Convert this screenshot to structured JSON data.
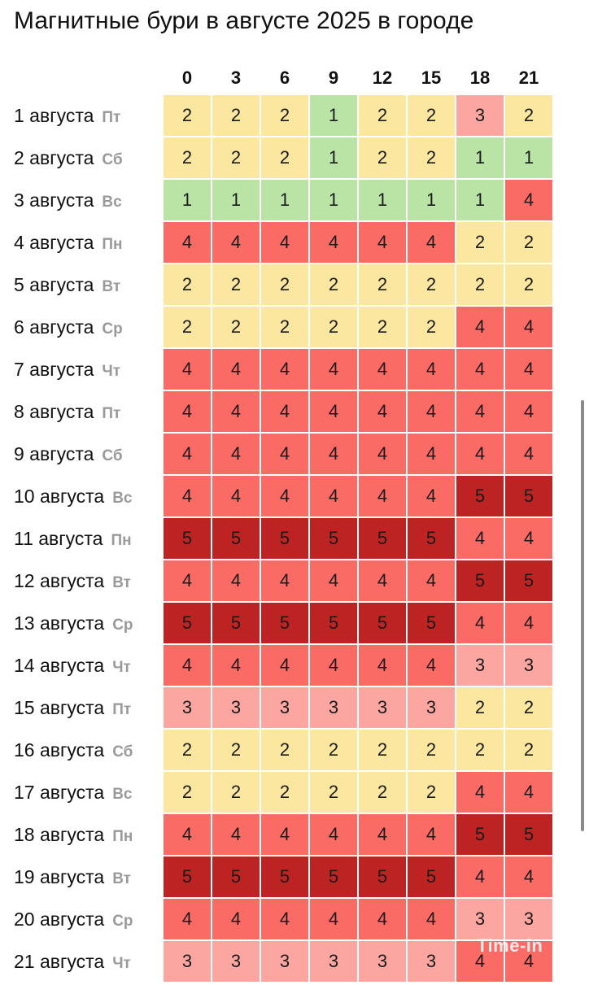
{
  "title": "Магнитные бури в августе 2025 в городе",
  "watermark": "Time-in",
  "colors": {
    "1": "#b9e4a6",
    "2": "#fbe7a0",
    "3": "#fba6a1",
    "4": "#fb6b66",
    "5": "#be2323"
  },
  "chart_data": {
    "type": "heatmap",
    "title": "Магнитные бури в августе 2025 в городе",
    "columns": [
      "0",
      "3",
      "6",
      "9",
      "12",
      "15",
      "18",
      "21"
    ],
    "rows": [
      {
        "date": "1 августа",
        "dow": "Пт",
        "values": [
          2,
          2,
          2,
          1,
          2,
          2,
          3,
          2
        ]
      },
      {
        "date": "2 августа",
        "dow": "Сб",
        "values": [
          2,
          2,
          2,
          1,
          2,
          2,
          1,
          1
        ]
      },
      {
        "date": "3 августа",
        "dow": "Вс",
        "values": [
          1,
          1,
          1,
          1,
          1,
          1,
          1,
          4
        ]
      },
      {
        "date": "4 августа",
        "dow": "Пн",
        "values": [
          4,
          4,
          4,
          4,
          4,
          4,
          2,
          2
        ]
      },
      {
        "date": "5 августа",
        "dow": "Вт",
        "values": [
          2,
          2,
          2,
          2,
          2,
          2,
          2,
          2
        ]
      },
      {
        "date": "6 августа",
        "dow": "Ср",
        "values": [
          2,
          2,
          2,
          2,
          2,
          2,
          4,
          4
        ]
      },
      {
        "date": "7 августа",
        "dow": "Чт",
        "values": [
          4,
          4,
          4,
          4,
          4,
          4,
          4,
          4
        ]
      },
      {
        "date": "8 августа",
        "dow": "Пт",
        "values": [
          4,
          4,
          4,
          4,
          4,
          4,
          4,
          4
        ]
      },
      {
        "date": "9 августа",
        "dow": "Сб",
        "values": [
          4,
          4,
          4,
          4,
          4,
          4,
          4,
          4
        ]
      },
      {
        "date": "10 августа",
        "dow": "Вс",
        "values": [
          4,
          4,
          4,
          4,
          4,
          4,
          5,
          5
        ]
      },
      {
        "date": "11 августа",
        "dow": "Пн",
        "values": [
          5,
          5,
          5,
          5,
          5,
          5,
          4,
          4
        ]
      },
      {
        "date": "12 августа",
        "dow": "Вт",
        "values": [
          4,
          4,
          4,
          4,
          4,
          4,
          5,
          5
        ]
      },
      {
        "date": "13 августа",
        "dow": "Ср",
        "values": [
          5,
          5,
          5,
          5,
          5,
          5,
          4,
          4
        ]
      },
      {
        "date": "14 августа",
        "dow": "Чт",
        "values": [
          4,
          4,
          4,
          4,
          4,
          4,
          3,
          3
        ]
      },
      {
        "date": "15 августа",
        "dow": "Пт",
        "values": [
          3,
          3,
          3,
          3,
          3,
          3,
          2,
          2
        ]
      },
      {
        "date": "16 августа",
        "dow": "Сб",
        "values": [
          2,
          2,
          2,
          2,
          2,
          2,
          2,
          2
        ]
      },
      {
        "date": "17 августа",
        "dow": "Вс",
        "values": [
          2,
          2,
          2,
          2,
          2,
          2,
          4,
          4
        ]
      },
      {
        "date": "18 августа",
        "dow": "Пн",
        "values": [
          4,
          4,
          4,
          4,
          4,
          4,
          5,
          5
        ]
      },
      {
        "date": "19 августа",
        "dow": "Вт",
        "values": [
          5,
          5,
          5,
          5,
          5,
          5,
          4,
          4
        ]
      },
      {
        "date": "20 августа",
        "dow": "Ср",
        "values": [
          4,
          4,
          4,
          4,
          4,
          4,
          3,
          3
        ]
      },
      {
        "date": "21 августа",
        "dow": "Чт",
        "values": [
          3,
          3,
          3,
          3,
          3,
          3,
          4,
          4
        ]
      }
    ]
  }
}
